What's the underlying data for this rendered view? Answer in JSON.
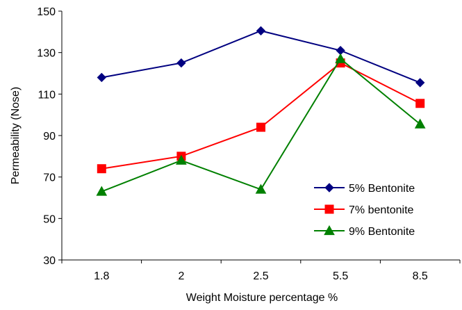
{
  "chart_data": {
    "type": "line",
    "title": "",
    "xlabel": "Weight Moisture percentage %",
    "ylabel": "Permeability (Nose)",
    "categories": [
      "1.8",
      "2",
      "2.5",
      "5.5",
      "8.5"
    ],
    "ylim": [
      30,
      150
    ],
    "yticks": [
      "30",
      "50",
      "70",
      "90",
      "110",
      "130",
      "150"
    ],
    "grid": false,
    "legend_position": "bottom-right",
    "series": [
      {
        "name": "5% Bentonite",
        "values": [
          118,
          125,
          140.5,
          131,
          115.5
        ],
        "color": "#000080",
        "marker": "diamond"
      },
      {
        "name": "7% bentonite",
        "values": [
          74,
          80,
          94,
          125,
          105.5
        ],
        "color": "#FF0000",
        "marker": "square"
      },
      {
        "name": "9% Bentonite",
        "values": [
          63,
          78,
          64,
          127,
          95.5
        ],
        "color": "#008000",
        "marker": "triangle"
      }
    ]
  }
}
